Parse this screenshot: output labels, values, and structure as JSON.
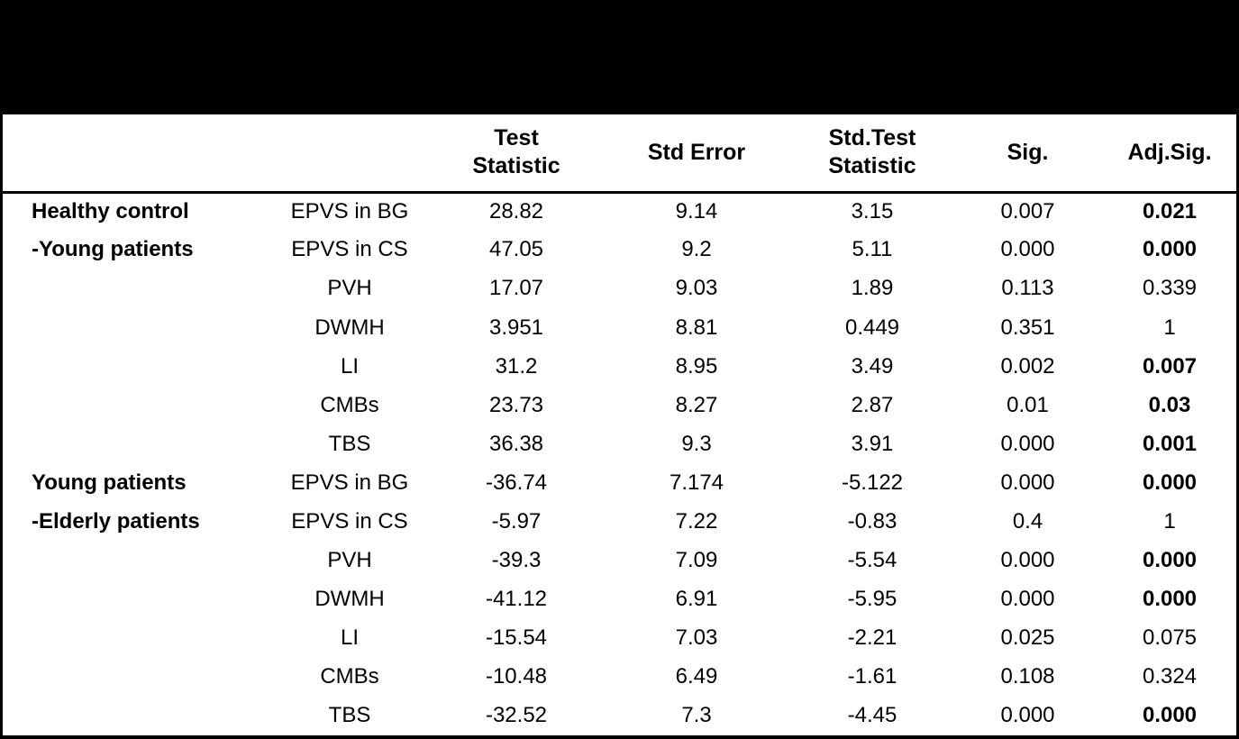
{
  "table": {
    "headers": [
      "",
      "",
      "Test\nStatistic",
      "Std Error",
      "Std.Test\nStatistic",
      "Sig.",
      "Adj.Sig."
    ],
    "rows": [
      {
        "group": "Healthy control",
        "measure": "EPVS in BG",
        "test_statistic": "28.82",
        "std_error": "9.14",
        "std_test_statistic": "3.15",
        "sig": "0.007",
        "adj_sig": "0.021",
        "adj_sig_bold": true
      },
      {
        "group": "-Young patients",
        "measure": "EPVS in CS",
        "test_statistic": "47.05",
        "std_error": "9.2",
        "std_test_statistic": "5.11",
        "sig": "0.000",
        "adj_sig": "0.000",
        "adj_sig_bold": true
      },
      {
        "group": "",
        "measure": "PVH",
        "test_statistic": "17.07",
        "std_error": "9.03",
        "std_test_statistic": "1.89",
        "sig": "0.113",
        "adj_sig": "0.339",
        "adj_sig_bold": false
      },
      {
        "group": "",
        "measure": "DWMH",
        "test_statistic": "3.951",
        "std_error": "8.81",
        "std_test_statistic": "0.449",
        "sig": "0.351",
        "adj_sig": "1",
        "adj_sig_bold": false
      },
      {
        "group": "",
        "measure": "LI",
        "test_statistic": "31.2",
        "std_error": "8.95",
        "std_test_statistic": "3.49",
        "sig": "0.002",
        "adj_sig": "0.007",
        "adj_sig_bold": true
      },
      {
        "group": "",
        "measure": "CMBs",
        "test_statistic": "23.73",
        "std_error": "8.27",
        "std_test_statistic": "2.87",
        "sig": "0.01",
        "adj_sig": "0.03",
        "adj_sig_bold": true
      },
      {
        "group": "",
        "measure": "TBS",
        "test_statistic": "36.38",
        "std_error": "9.3",
        "std_test_statistic": "3.91",
        "sig": "0.000",
        "adj_sig": "0.001",
        "adj_sig_bold": true
      },
      {
        "group": "Young patients",
        "measure": "EPVS in BG",
        "test_statistic": "-36.74",
        "std_error": "7.174",
        "std_test_statistic": "-5.122",
        "sig": "0.000",
        "adj_sig": "0.000",
        "adj_sig_bold": true
      },
      {
        "group": "-Elderly patients",
        "measure": "EPVS in CS",
        "test_statistic": "-5.97",
        "std_error": "7.22",
        "std_test_statistic": "-0.83",
        "sig": "0.4",
        "adj_sig": "1",
        "adj_sig_bold": false
      },
      {
        "group": "",
        "measure": "PVH",
        "test_statistic": "-39.3",
        "std_error": "7.09",
        "std_test_statistic": "-5.54",
        "sig": "0.000",
        "adj_sig": "0.000",
        "adj_sig_bold": true
      },
      {
        "group": "",
        "measure": "DWMH",
        "test_statistic": "-41.12",
        "std_error": "6.91",
        "std_test_statistic": "-5.95",
        "sig": "0.000",
        "adj_sig": "0.000",
        "adj_sig_bold": true
      },
      {
        "group": "",
        "measure": "LI",
        "test_statistic": "-15.54",
        "std_error": "7.03",
        "std_test_statistic": "-2.21",
        "sig": "0.025",
        "adj_sig": "0.075",
        "adj_sig_bold": false
      },
      {
        "group": "",
        "measure": "CMBs",
        "test_statistic": "-10.48",
        "std_error": "6.49",
        "std_test_statistic": "-1.61",
        "sig": "0.108",
        "adj_sig": "0.324",
        "adj_sig_bold": false
      },
      {
        "group": "",
        "measure": "TBS",
        "test_statistic": "-32.52",
        "std_error": "7.3",
        "std_test_statistic": "-4.45",
        "sig": "0.000",
        "adj_sig": "0.000",
        "adj_sig_bold": true
      }
    ]
  }
}
